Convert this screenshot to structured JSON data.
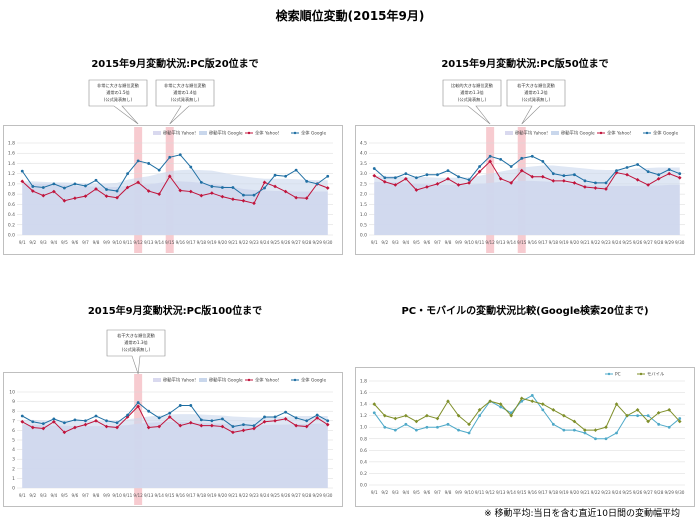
{
  "page_title": "検索順位変動(2015年9月)",
  "footnote": "※ 移動平均:当日を含む直近10日間の変動幅平均",
  "panels": [
    {
      "title": "2015年9月変動状況:PC版20位まで"
    },
    {
      "title": "2015年9月変動状況:PC版50位まで"
    },
    {
      "title": "2015年9月変動状況:PC版100位まで"
    },
    {
      "title": "PC・モバイルの変動状況比較(Google検索20位まで)"
    }
  ],
  "colors": {
    "yahoo": "#c0143c",
    "google": "#1f6fa3",
    "ma_yahoo": "#d9d9ef",
    "ma_google": "#c9d7ec",
    "highlight": "#f6c2c8",
    "pc": "#4fa9c8",
    "mobile": "#7f8f2a",
    "grid": "#d9d9d9"
  },
  "chart_data": [
    {
      "type": "line",
      "categories": [
        "9/1",
        "9/2",
        "9/3",
        "9/4",
        "9/5",
        "9/6",
        "9/7",
        "9/8",
        "9/9",
        "9/10",
        "9/11",
        "9/12",
        "9/13",
        "9/14",
        "9/15",
        "9/16",
        "9/17",
        "9/18",
        "9/19",
        "9/20",
        "9/21",
        "9/22",
        "9/23",
        "9/24",
        "9/25",
        "9/26",
        "9/27",
        "9/28",
        "9/29",
        "9/30"
      ],
      "ylim": [
        0,
        1.8
      ],
      "yticks": [
        "0.0",
        "0.2",
        "0.4",
        "0.6",
        "0.8",
        "1.0",
        "1.2",
        "1.4",
        "1.6",
        "1.8"
      ],
      "legend": [
        "移動平均 Yahoo!",
        "移動平均 Google",
        "全体 Yahoo!",
        "全体 Google"
      ],
      "series": [
        {
          "name": "移動平均 Yahoo!",
          "kind": "area_yahoo",
          "values": [
            1.0,
            1.0,
            1.0,
            1.0,
            0.98,
            0.96,
            0.95,
            0.95,
            0.94,
            0.94,
            0.96,
            0.98,
            0.99,
            1.02,
            1.05,
            1.05,
            1.04,
            1.02,
            1.0,
            0.97,
            0.94,
            0.9,
            0.88,
            0.87,
            0.86,
            0.86,
            0.85,
            0.85,
            0.85,
            0.85
          ]
        },
        {
          "name": "移動平均 Google",
          "kind": "area_google",
          "values": [
            1.05,
            1.05,
            1.04,
            1.03,
            1.03,
            1.02,
            1.01,
            1.01,
            1.01,
            1.02,
            1.08,
            1.12,
            1.15,
            1.2,
            1.25,
            1.27,
            1.28,
            1.27,
            1.26,
            1.22,
            1.18,
            1.15,
            1.12,
            1.1,
            1.1,
            1.1,
            1.09,
            1.08,
            1.07,
            1.07
          ]
        },
        {
          "name": "全体 Yahoo!",
          "kind": "yahoo",
          "values": [
            1.05,
            0.86,
            0.77,
            0.85,
            0.67,
            0.72,
            0.76,
            0.9,
            0.76,
            0.73,
            0.93,
            1.03,
            0.86,
            0.8,
            1.15,
            0.87,
            0.85,
            0.77,
            0.82,
            0.75,
            0.7,
            0.67,
            0.62,
            1.03,
            0.95,
            0.85,
            0.73,
            0.72,
            1.0,
            0.92
          ]
        },
        {
          "name": "全体 Google",
          "kind": "google",
          "values": [
            1.25,
            0.95,
            0.93,
            1.0,
            0.92,
            1.0,
            0.96,
            1.07,
            0.89,
            0.86,
            1.2,
            1.45,
            1.4,
            1.27,
            1.52,
            1.57,
            1.33,
            1.03,
            0.95,
            0.93,
            0.93,
            0.78,
            0.78,
            0.92,
            1.17,
            1.15,
            1.27,
            1.05,
            1.0,
            1.15
          ]
        }
      ],
      "highlights": [
        11,
        14
      ],
      "callouts": [
        {
          "lines": [
            "非常に大きな順位変動",
            "通常の1.5倍",
            "(公式発表無し)"
          ]
        },
        {
          "lines": [
            "非常に大きな順位変動",
            "通常の1.4倍",
            "(公式発表無し)"
          ]
        }
      ]
    },
    {
      "type": "line",
      "categories": [
        "9/1",
        "9/2",
        "9/3",
        "9/4",
        "9/5",
        "9/6",
        "9/7",
        "9/8",
        "9/9",
        "9/10",
        "9/11",
        "9/12",
        "9/13",
        "9/14",
        "9/15",
        "9/16",
        "9/17",
        "9/18",
        "9/19",
        "9/20",
        "9/21",
        "9/22",
        "9/23",
        "9/24",
        "9/25",
        "9/26",
        "9/27",
        "9/28",
        "9/29",
        "9/30"
      ],
      "ylim": [
        0,
        4.5
      ],
      "yticks": [
        "0.0",
        "0.5",
        "1.0",
        "1.5",
        "2.0",
        "2.5",
        "3.0",
        "3.5",
        "4.0",
        "4.5"
      ],
      "legend": [
        "移動平均 Yahoo!",
        "移動平均 Google",
        "全体 Yahoo!",
        "全体 Google"
      ],
      "series": [
        {
          "name": "移動平均 Yahoo!",
          "kind": "area_yahoo",
          "values": [
            2.6,
            2.6,
            2.58,
            2.55,
            2.5,
            2.48,
            2.45,
            2.45,
            2.45,
            2.45,
            2.5,
            2.55,
            2.6,
            2.62,
            2.65,
            2.65,
            2.62,
            2.6,
            2.55,
            2.5,
            2.45,
            2.42,
            2.4,
            2.4,
            2.4,
            2.4,
            2.42,
            2.42,
            2.45,
            2.45
          ]
        },
        {
          "name": "移動平均 Google",
          "kind": "area_google",
          "values": [
            2.9,
            2.9,
            2.88,
            2.85,
            2.85,
            2.83,
            2.8,
            2.8,
            2.8,
            2.82,
            2.9,
            3.0,
            3.1,
            3.2,
            3.3,
            3.35,
            3.4,
            3.4,
            3.35,
            3.3,
            3.25,
            3.2,
            3.18,
            3.18,
            3.2,
            3.25,
            3.28,
            3.3,
            3.3,
            3.3
          ]
        },
        {
          "name": "全体 Yahoo!",
          "kind": "yahoo",
          "values": [
            2.9,
            2.6,
            2.45,
            2.75,
            2.2,
            2.35,
            2.5,
            2.75,
            2.45,
            2.55,
            3.1,
            3.6,
            2.75,
            2.55,
            3.15,
            2.85,
            2.85,
            2.65,
            2.65,
            2.55,
            2.35,
            2.3,
            2.25,
            3.05,
            2.95,
            2.7,
            2.45,
            2.75,
            3.0,
            2.8
          ]
        },
        {
          "name": "全体 Google",
          "kind": "google",
          "values": [
            3.25,
            2.8,
            2.8,
            3.0,
            2.8,
            2.95,
            2.95,
            3.15,
            2.85,
            2.7,
            3.35,
            3.85,
            3.7,
            3.35,
            3.75,
            3.85,
            3.6,
            3.0,
            2.9,
            2.95,
            2.65,
            2.55,
            2.55,
            3.15,
            3.3,
            3.45,
            3.1,
            2.95,
            3.2,
            3.0
          ]
        }
      ],
      "highlights": [
        11,
        14
      ],
      "callouts": [
        {
          "lines": [
            "比較的大きな順位変動",
            "通常の1.3倍",
            "(公式発表無し)"
          ]
        },
        {
          "lines": [
            "若干大きな順位変動",
            "通常の1.2倍",
            "(公式発表無し)"
          ]
        }
      ]
    },
    {
      "type": "line",
      "categories": [
        "9/1",
        "9/2",
        "9/3",
        "9/4",
        "9/5",
        "9/6",
        "9/7",
        "9/8",
        "9/9",
        "9/10",
        "9/11",
        "9/12",
        "9/13",
        "9/14",
        "9/15",
        "9/16",
        "9/17",
        "9/18",
        "9/19",
        "9/20",
        "9/21",
        "9/22",
        "9/23",
        "9/24",
        "9/25",
        "9/26",
        "9/27",
        "9/28",
        "9/29",
        "9/30"
      ],
      "ylim": [
        0,
        10
      ],
      "yticks": [
        "0",
        "1",
        "2",
        "3",
        "4",
        "5",
        "6",
        "7",
        "8",
        "9",
        "10"
      ],
      "legend": [
        "移動平均 Yahoo!",
        "移動平均 Google",
        "全体 Yahoo!",
        "全体 Google"
      ],
      "series": [
        {
          "name": "移動平均 Yahoo!",
          "kind": "area_yahoo",
          "values": [
            6.6,
            6.6,
            6.55,
            6.5,
            6.5,
            6.45,
            6.45,
            6.45,
            6.45,
            6.5,
            6.55,
            6.7,
            6.8,
            6.85,
            6.9,
            6.9,
            6.85,
            6.8,
            6.75,
            6.7,
            6.6,
            6.5,
            6.5,
            6.55,
            6.6,
            6.6,
            6.65,
            6.65,
            6.7,
            6.7
          ]
        },
        {
          "name": "移動平均 Google",
          "kind": "area_google",
          "values": [
            7.1,
            7.1,
            7.05,
            7.0,
            7.0,
            7.0,
            7.0,
            7.0,
            7.0,
            7.05,
            7.15,
            7.3,
            7.45,
            7.55,
            7.65,
            7.7,
            7.7,
            7.65,
            7.6,
            7.55,
            7.45,
            7.4,
            7.35,
            7.35,
            7.4,
            7.45,
            7.5,
            7.5,
            7.5,
            7.5
          ]
        },
        {
          "name": "全体 Yahoo!",
          "kind": "yahoo",
          "values": [
            6.9,
            6.3,
            6.2,
            6.9,
            5.8,
            6.3,
            6.6,
            7.0,
            6.4,
            6.3,
            7.4,
            8.5,
            6.3,
            6.4,
            7.4,
            6.5,
            6.8,
            6.5,
            6.5,
            6.4,
            5.8,
            6.0,
            6.2,
            6.9,
            7.0,
            7.2,
            6.5,
            6.4,
            7.3,
            6.6
          ]
        },
        {
          "name": "全体 Google",
          "kind": "google",
          "values": [
            7.5,
            6.9,
            6.7,
            7.2,
            6.8,
            7.1,
            7.0,
            7.5,
            7.0,
            6.8,
            7.6,
            8.9,
            8.0,
            7.3,
            7.8,
            8.6,
            8.6,
            7.1,
            7.0,
            7.2,
            6.4,
            6.6,
            6.5,
            7.4,
            7.4,
            7.9,
            7.3,
            7.0,
            7.6,
            7.0
          ]
        }
      ],
      "highlights": [
        11
      ],
      "callouts": [
        {
          "lines": [
            "若干大きな順位変動",
            "通常の1.3倍",
            "(公式発表無し)"
          ]
        }
      ]
    },
    {
      "type": "line",
      "categories": [
        "9/1",
        "9/2",
        "9/3",
        "9/4",
        "9/5",
        "9/6",
        "9/7",
        "9/8",
        "9/9",
        "9/10",
        "9/11",
        "9/12",
        "9/13",
        "9/14",
        "9/15",
        "9/16",
        "9/17",
        "9/18",
        "9/19",
        "9/20",
        "9/21",
        "9/22",
        "9/23",
        "9/24",
        "9/25",
        "9/26",
        "9/27",
        "9/28",
        "9/29",
        "9/30"
      ],
      "ylim": [
        0,
        1.8
      ],
      "yticks": [
        "0.0",
        "0.2",
        "0.4",
        "0.6",
        "0.8",
        "1.0",
        "1.2",
        "1.4",
        "1.6",
        "1.8"
      ],
      "legend": [
        "PC",
        "モバイル"
      ],
      "series": [
        {
          "name": "PC",
          "kind": "pc",
          "values": [
            1.25,
            1.0,
            0.95,
            1.05,
            0.95,
            1.0,
            1.0,
            1.05,
            0.95,
            0.9,
            1.2,
            1.45,
            1.35,
            1.25,
            1.45,
            1.55,
            1.3,
            1.05,
            0.95,
            0.95,
            0.9,
            0.8,
            0.8,
            0.9,
            1.2,
            1.2,
            1.2,
            1.05,
            1.0,
            1.15
          ]
        },
        {
          "name": "モバイル",
          "kind": "mobile",
          "values": [
            1.4,
            1.2,
            1.15,
            1.2,
            1.1,
            1.2,
            1.15,
            1.45,
            1.2,
            1.05,
            1.3,
            1.45,
            1.4,
            1.2,
            1.5,
            1.45,
            1.4,
            1.3,
            1.2,
            1.1,
            0.95,
            0.95,
            1.0,
            1.4,
            1.2,
            1.3,
            1.1,
            1.25,
            1.3,
            1.1
          ]
        }
      ],
      "highlights": [],
      "callouts": []
    }
  ]
}
